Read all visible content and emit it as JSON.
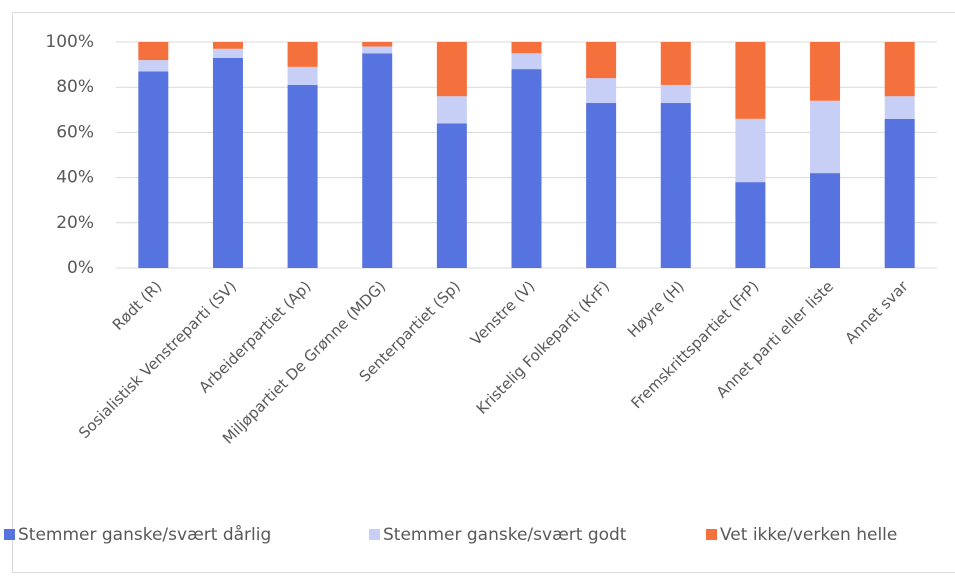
{
  "chart_data": {
    "type": "stacked_bar",
    "categories": [
      "Rødt (R)",
      "Sosialistisk Venstreparti (SV)",
      "Arbeiderpartiet (Ap)",
      "Miljøpartiet De Grønne (MDG)",
      "Senterpartiet (Sp)",
      "Venstre (V)",
      "Kristelig Folkeparti (KrF)",
      "Høyre (H)",
      "Fremskrittspartiet (FrP)",
      "Annet parti eller liste",
      "Annet svar"
    ],
    "series": [
      {
        "name": "Stemmer ganske/svært dårlig",
        "color": "#5673e0",
        "values": [
          87,
          93,
          81,
          95,
          64,
          88,
          73,
          73,
          38,
          42,
          66
        ]
      },
      {
        "name": "Stemmer ganske/svært godt",
        "color": "#c7cff6",
        "values": [
          5,
          4,
          8,
          3,
          12,
          7,
          11,
          8,
          28,
          32,
          10
        ]
      },
      {
        "name": "Vet ikke/verken helle",
        "color": "#f4703c",
        "values": [
          8,
          3,
          11,
          2,
          24,
          5,
          16,
          19,
          34,
          26,
          24
        ]
      }
    ],
    "ylim": [
      0,
      100
    ],
    "yticks": [
      {
        "value": 0,
        "label": "0%"
      },
      {
        "value": 20,
        "label": "20%"
      },
      {
        "value": 40,
        "label": "40%"
      },
      {
        "value": 60,
        "label": "60%"
      },
      {
        "value": 80,
        "label": "80%"
      },
      {
        "value": 100,
        "label": "100%"
      }
    ],
    "grid": true,
    "legend": "bottom"
  }
}
